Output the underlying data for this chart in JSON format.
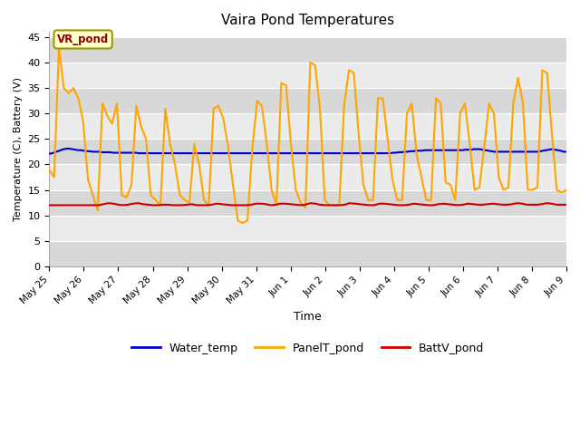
{
  "title": "Vaira Pond Temperatures",
  "xlabel": "Time",
  "ylabel": "Temperature (C), Battery (V)",
  "annotation": "VR_pond",
  "ylim": [
    0,
    46
  ],
  "yticks": [
    0,
    5,
    10,
    15,
    20,
    25,
    30,
    35,
    40,
    45
  ],
  "xtick_labels": [
    "May 25",
    "May 26",
    "May 27",
    "May 28",
    "May 29",
    "May 30",
    "May 31",
    "Jun 1",
    "Jun 2",
    "Jun 3",
    "Jun 4",
    "Jun 5",
    "Jun 6",
    "Jun 7",
    "Jun 8",
    "Jun 9"
  ],
  "water_temp_color": "#0000cc",
  "panel_temp_color": "#ffa500",
  "batt_color": "#cc0000",
  "bg_color": "#ffffff",
  "plot_bg_color": "#ffffff",
  "band_light": "#f0f0f0",
  "band_dark": "#d8d8d8",
  "water_temp": [
    22.1,
    22.2,
    22.4,
    22.6,
    22.8,
    23.0,
    23.1,
    23.1,
    23.0,
    22.9,
    22.8,
    22.8,
    22.7,
    22.6,
    22.6,
    22.5,
    22.5,
    22.5,
    22.4,
    22.4,
    22.4,
    22.4,
    22.3,
    22.3,
    22.3,
    22.3,
    22.3,
    22.3,
    22.3,
    22.3,
    22.3,
    22.2,
    22.2,
    22.2,
    22.2,
    22.2,
    22.2,
    22.2,
    22.2,
    22.2,
    22.2,
    22.2,
    22.2,
    22.2,
    22.2,
    22.2,
    22.2,
    22.2,
    22.2,
    22.2,
    22.2,
    22.2,
    22.2,
    22.2,
    22.2,
    22.2,
    22.2,
    22.2,
    22.2,
    22.2,
    22.2,
    22.2,
    22.2,
    22.2,
    22.2,
    22.2,
    22.2,
    22.2,
    22.2,
    22.2,
    22.2,
    22.2,
    22.2,
    22.2,
    22.2,
    22.2,
    22.2,
    22.2,
    22.2,
    22.2,
    22.2,
    22.2,
    22.2,
    22.2,
    22.2,
    22.2,
    22.2,
    22.2,
    22.2,
    22.2,
    22.2,
    22.2,
    22.2,
    22.2,
    22.2,
    22.2,
    22.2,
    22.2,
    22.2,
    22.2,
    22.2,
    22.2,
    22.2,
    22.2,
    22.2,
    22.2,
    22.2,
    22.2,
    22.2,
    22.2,
    22.2,
    22.2,
    22.2,
    22.2,
    22.2,
    22.2,
    22.2,
    22.2,
    22.2,
    22.3,
    22.3,
    22.4,
    22.4,
    22.5,
    22.5,
    22.6,
    22.6,
    22.7,
    22.7,
    22.7,
    22.8,
    22.8,
    22.8,
    22.8,
    22.8,
    22.8,
    22.8,
    22.8,
    22.8,
    22.8,
    22.8,
    22.8,
    22.8,
    22.8,
    22.9,
    22.9,
    22.9,
    23.0,
    23.0,
    23.0,
    22.9,
    22.8,
    22.7,
    22.6,
    22.5,
    22.5,
    22.5,
    22.5,
    22.5,
    22.5,
    22.5,
    22.5,
    22.5,
    22.5,
    22.5,
    22.5,
    22.5,
    22.5,
    22.5,
    22.5,
    22.6,
    22.7,
    22.8,
    22.9,
    23.0,
    22.9,
    22.8,
    22.7,
    22.5,
    22.5
  ],
  "panel_temp": [
    19.0,
    17.5,
    43.0,
    35.0,
    34.0,
    35.0,
    33.0,
    28.5,
    17.0,
    14.0,
    11.0,
    32.0,
    29.5,
    28.0,
    32.0,
    14.0,
    13.5,
    16.0,
    31.5,
    27.5,
    25.0,
    14.0,
    13.0,
    12.0,
    31.0,
    24.0,
    20.0,
    14.0,
    13.0,
    12.5,
    24.0,
    20.0,
    13.0,
    12.0,
    31.0,
    31.5,
    29.0,
    23.5,
    16.0,
    9.0,
    8.5,
    9.0,
    23.0,
    32.5,
    31.5,
    24.0,
    15.0,
    12.0,
    36.0,
    35.5,
    24.0,
    15.0,
    12.5,
    11.5,
    40.0,
    39.5,
    31.0,
    13.0,
    12.0,
    12.0,
    12.0,
    31.5,
    38.5,
    38.0,
    26.0,
    16.0,
    13.0,
    13.0,
    33.0,
    33.0,
    25.0,
    17.0,
    13.0,
    13.0,
    30.0,
    32.0,
    22.0,
    17.5,
    13.0,
    13.0,
    33.0,
    32.0,
    16.5,
    16.0,
    13.0,
    30.0,
    32.0,
    24.0,
    15.0,
    15.5,
    23.5,
    32.0,
    30.0,
    17.5,
    15.0,
    15.5,
    32.0,
    37.0,
    32.0,
    15.0,
    15.0,
    15.5,
    38.5,
    38.0,
    26.0,
    15.0,
    14.5,
    15.0
  ],
  "batt_v": [
    12.0,
    12.0,
    12.0,
    12.0,
    12.0,
    12.0,
    12.0,
    12.0,
    12.0,
    12.0,
    12.0,
    12.2,
    12.4,
    12.3,
    12.1,
    12.0,
    12.1,
    12.3,
    12.4,
    12.2,
    12.1,
    12.0,
    12.0,
    12.1,
    12.1,
    12.0,
    12.0,
    12.0,
    12.1,
    12.2,
    12.0,
    12.0,
    12.0,
    12.1,
    12.3,
    12.2,
    12.1,
    12.0,
    12.0,
    12.0,
    12.0,
    12.1,
    12.3,
    12.3,
    12.2,
    12.0,
    12.1,
    12.3,
    12.3,
    12.2,
    12.1,
    12.0,
    12.1,
    12.4,
    12.3,
    12.1,
    12.0,
    12.0,
    12.0,
    12.0,
    12.1,
    12.4,
    12.3,
    12.2,
    12.1,
    12.0,
    12.0,
    12.3,
    12.3,
    12.2,
    12.1,
    12.0,
    12.0,
    12.1,
    12.3,
    12.2,
    12.1,
    12.0,
    12.0,
    12.2,
    12.3,
    12.2,
    12.1,
    12.0,
    12.1,
    12.3,
    12.2,
    12.1,
    12.1,
    12.2,
    12.3,
    12.2,
    12.1,
    12.1,
    12.2,
    12.4,
    12.3,
    12.1,
    12.1,
    12.1,
    12.2,
    12.4,
    12.3,
    12.1,
    12.1,
    12.1
  ],
  "band_ranges": [
    [
      0,
      5
    ],
    [
      10,
      15
    ],
    [
      20,
      25
    ],
    [
      30,
      35
    ],
    [
      40,
      45
    ]
  ],
  "band2_ranges": [
    [
      5,
      10
    ],
    [
      15,
      20
    ],
    [
      25,
      30
    ],
    [
      35,
      40
    ]
  ]
}
